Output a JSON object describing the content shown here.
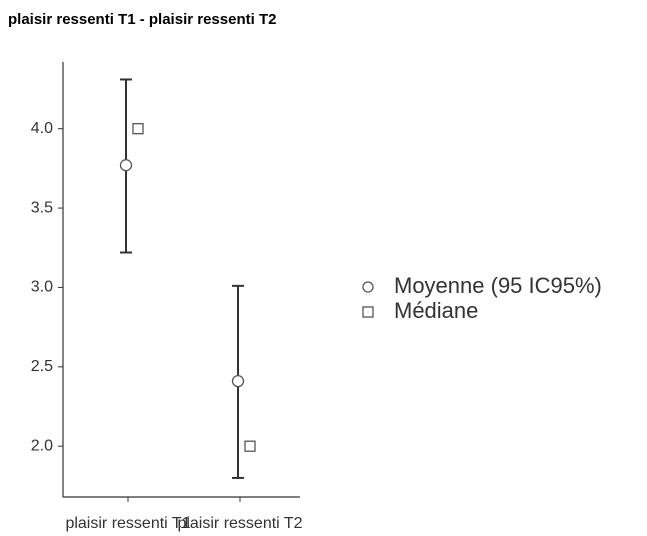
{
  "chart_data": {
    "type": "pointrange",
    "title": "plaisir ressenti T1 - plaisir ressenti T2",
    "categories": [
      "plaisir ressenti T1",
      "plaisir ressenti T2"
    ],
    "series": [
      {
        "name": "Moyenne (95 IC95%)",
        "marker": "circle",
        "color": "#ffffff",
        "values": [
          3.77,
          2.41
        ],
        "ci_lower": [
          3.22,
          1.8
        ],
        "ci_upper": [
          4.31,
          3.01
        ]
      },
      {
        "name": "Médiane",
        "marker": "square",
        "color": "#ffffff",
        "values": [
          4.0,
          2.0
        ]
      }
    ],
    "ylim": [
      1.68,
      4.42
    ],
    "yticks": [
      {
        "value": 2,
        "label": "2.0"
      },
      {
        "value": 2.5,
        "label": "2.5"
      },
      {
        "value": 3,
        "label": "3.0"
      },
      {
        "value": 3.5,
        "label": "3.5"
      },
      {
        "value": 4,
        "label": "4.0"
      }
    ],
    "grid": false,
    "legend": "right"
  }
}
